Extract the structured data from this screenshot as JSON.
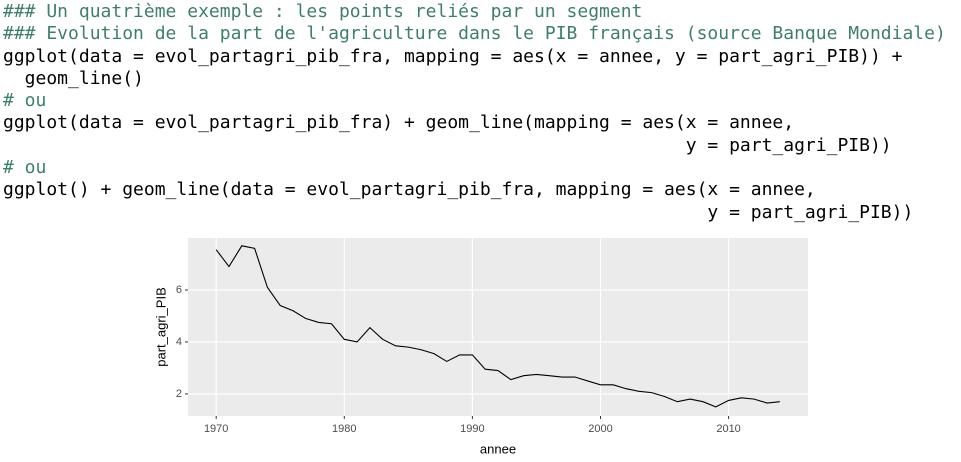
{
  "code": {
    "lines": [
      "### Un quatrième exemple : les points reliés par un segment",
      "### Evolution de la part de l'agriculture dans le PIB français (source Banque Mondiale)",
      "ggplot(data = evol_partagri_pib_fra, mapping = aes(x = annee, y = part_agri_PIB)) +",
      "  geom_line()",
      "# ou",
      "ggplot(data = evol_partagri_pib_fra) + geom_line(mapping = aes(x = annee,",
      "                                                               y = part_agri_PIB))",
      "# ou",
      "ggplot() + geom_line(data = evol_partagri_pib_fra, mapping = aes(x = annee,",
      "                                                                 y = part_agri_PIB))"
    ]
  },
  "chart_data": {
    "type": "line",
    "x_label": "annee",
    "y_label": "part_agri_PIB",
    "color": "#000000",
    "x": [
      1970,
      1971,
      1972,
      1973,
      1974,
      1975,
      1976,
      1977,
      1978,
      1979,
      1980,
      1981,
      1982,
      1983,
      1984,
      1985,
      1986,
      1987,
      1988,
      1989,
      1990,
      1991,
      1992,
      1993,
      1994,
      1995,
      1996,
      1997,
      1998,
      1999,
      2000,
      2001,
      2002,
      2003,
      2004,
      2005,
      2006,
      2007,
      2008,
      2009,
      2010,
      2011,
      2012,
      2013,
      2014
    ],
    "values": [
      7.55,
      6.9,
      7.7,
      7.6,
      6.1,
      5.4,
      5.2,
      4.9,
      4.75,
      4.7,
      4.1,
      4.0,
      4.55,
      4.1,
      3.85,
      3.8,
      3.7,
      3.55,
      3.25,
      3.5,
      3.5,
      2.95,
      2.9,
      2.55,
      2.7,
      2.75,
      2.7,
      2.65,
      2.65,
      2.5,
      2.35,
      2.35,
      2.2,
      2.1,
      2.05,
      1.9,
      1.7,
      1.8,
      1.7,
      1.5,
      1.75,
      1.85,
      1.8,
      1.65,
      1.7
    ],
    "xlim": [
      1967.8,
      2016.2
    ],
    "ylim": [
      1.15,
      8.0
    ],
    "xticks": [
      1970,
      1980,
      1990,
      2000,
      2010
    ],
    "yticks": [
      2,
      4,
      6
    ],
    "grid": true
  }
}
